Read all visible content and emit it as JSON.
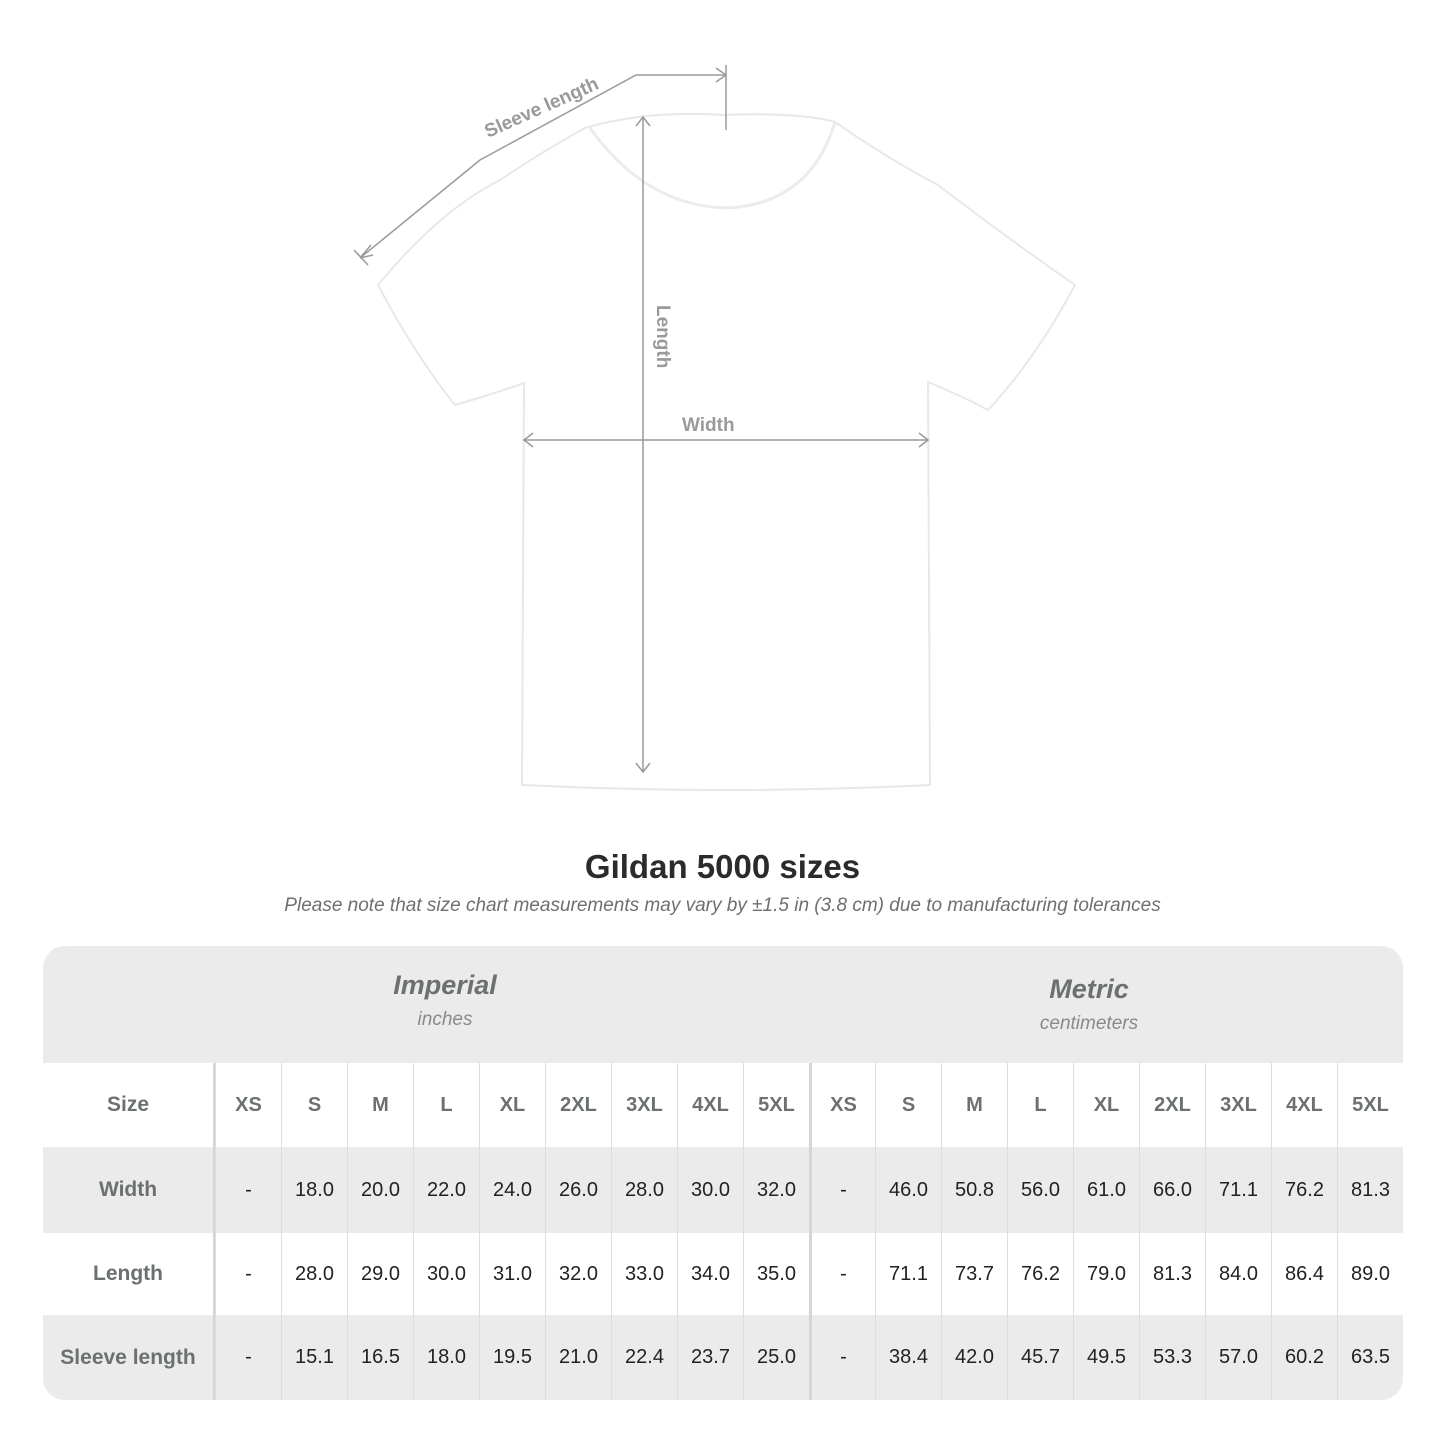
{
  "diagram": {
    "sleeve_label": "Sleeve length",
    "length_label": "Length",
    "width_label": "Width",
    "shirt_color": "#ffffff",
    "line_color": "#9a9a9a"
  },
  "title": "Gildan 5000 sizes",
  "note": "Please note that size chart measurements may vary by ±1.5 in (3.8 cm) due to manufacturing tolerances",
  "table": {
    "imperial": {
      "heading": "Imperial",
      "unit": "inches"
    },
    "metric": {
      "heading": "Metric",
      "unit": "centimeters"
    },
    "size_label": "Size",
    "sizes": [
      "XS",
      "S",
      "M",
      "L",
      "XL",
      "2XL",
      "3XL",
      "4XL",
      "5XL"
    ],
    "rows": [
      {
        "label": "Width",
        "imperial": [
          "-",
          "18.0",
          "20.0",
          "22.0",
          "24.0",
          "26.0",
          "28.0",
          "30.0",
          "32.0"
        ],
        "metric": [
          "-",
          "46.0",
          "50.8",
          "56.0",
          "61.0",
          "66.0",
          "71.1",
          "76.2",
          "81.3"
        ]
      },
      {
        "label": "Length",
        "imperial": [
          "-",
          "28.0",
          "29.0",
          "30.0",
          "31.0",
          "32.0",
          "33.0",
          "34.0",
          "35.0"
        ],
        "metric": [
          "-",
          "71.1",
          "73.7",
          "76.2",
          "79.0",
          "81.3",
          "84.0",
          "86.4",
          "89.0"
        ]
      },
      {
        "label": "Sleeve length",
        "imperial": [
          "-",
          "15.1",
          "16.5",
          "18.0",
          "19.5",
          "21.0",
          "22.4",
          "23.7",
          "25.0"
        ],
        "metric": [
          "-",
          "38.4",
          "42.0",
          "45.7",
          "49.5",
          "53.3",
          "57.0",
          "60.2",
          "63.5"
        ]
      }
    ]
  }
}
